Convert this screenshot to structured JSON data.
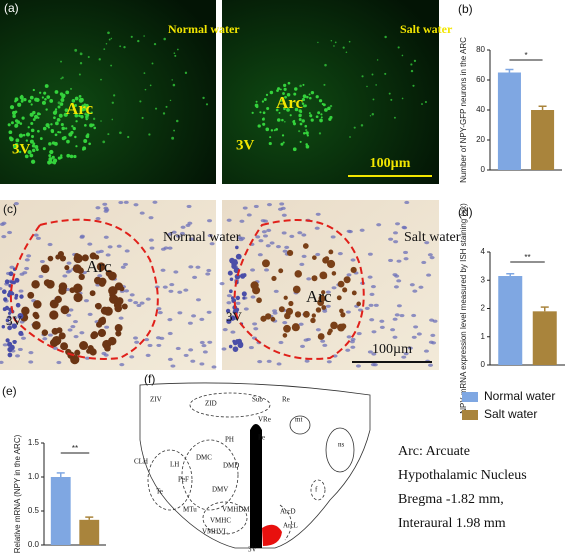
{
  "panels": {
    "a": {
      "label": "(a)",
      "left": {
        "condition": "Normal water",
        "region": "Arc",
        "ventricle": "3V"
      },
      "right": {
        "condition": "Salt water",
        "region": "Arc",
        "ventricle": "3V",
        "scale_bar": "100µm"
      }
    },
    "c": {
      "label": "(c)",
      "left": {
        "condition": "Normal water",
        "region": "Arc",
        "ventricle": "3V"
      },
      "right": {
        "condition": "Salt water",
        "region": "Arc",
        "ventricle": "3V",
        "scale_bar": "100µm"
      }
    },
    "f": {
      "label": "(f)",
      "labels": [
        "ZIV",
        "ZID",
        "Sub",
        "Re",
        "VRe",
        "mt",
        "PH",
        "Pe",
        "CLH",
        "LH",
        "DMC",
        "DMD",
        "ns",
        "PeF",
        "Te",
        "DMV",
        "f",
        "MTu",
        "VMHDM",
        "VMHC",
        "VMHVL",
        "ArcD",
        "ArcL",
        "3V"
      ],
      "notes": [
        "Arc: Arcuate",
        "Hypothalamic Nucleus",
        "Bregma -1.82 mm,",
        "Interaural 1.98 mm"
      ]
    }
  },
  "legend": {
    "items": [
      {
        "name": "Normal water",
        "color": "#7fa7e2"
      },
      {
        "name": "Salt water",
        "color": "#a9843c"
      }
    ]
  },
  "chart_data": [
    {
      "type": "bar",
      "panel_label": "(b)",
      "ylabel": "Number of NPY-GFP neurons in the ARC",
      "values": [
        65,
        40
      ],
      "errors": [
        2,
        2.5
      ],
      "ylim": [
        0,
        80
      ],
      "yticks": [
        0,
        20,
        40,
        60,
        80
      ],
      "significance": "*"
    },
    {
      "type": "bar",
      "panel_label": "(d)",
      "ylabel": "NPY mRNA expression level measured by ISH staining (xx)",
      "values": [
        3.15,
        1.9
      ],
      "errors": [
        0.08,
        0.15
      ],
      "ylim": [
        0,
        4
      ],
      "yticks": [
        0,
        1,
        2,
        3,
        4
      ],
      "significance": "**"
    },
    {
      "type": "bar",
      "panel_label": "(e)",
      "ylabel": "Relative mRNA (NPY in the ARC)",
      "values": [
        1.0,
        0.37
      ],
      "errors": [
        0.06,
        0.04
      ],
      "ylim": [
        0,
        1.5
      ],
      "yticks": [
        {
          "value": 0,
          "label": "0.0"
        },
        0.5,
        {
          "value": 1,
          "label": "1.0"
        },
        1.5
      ],
      "significance": "**"
    }
  ]
}
